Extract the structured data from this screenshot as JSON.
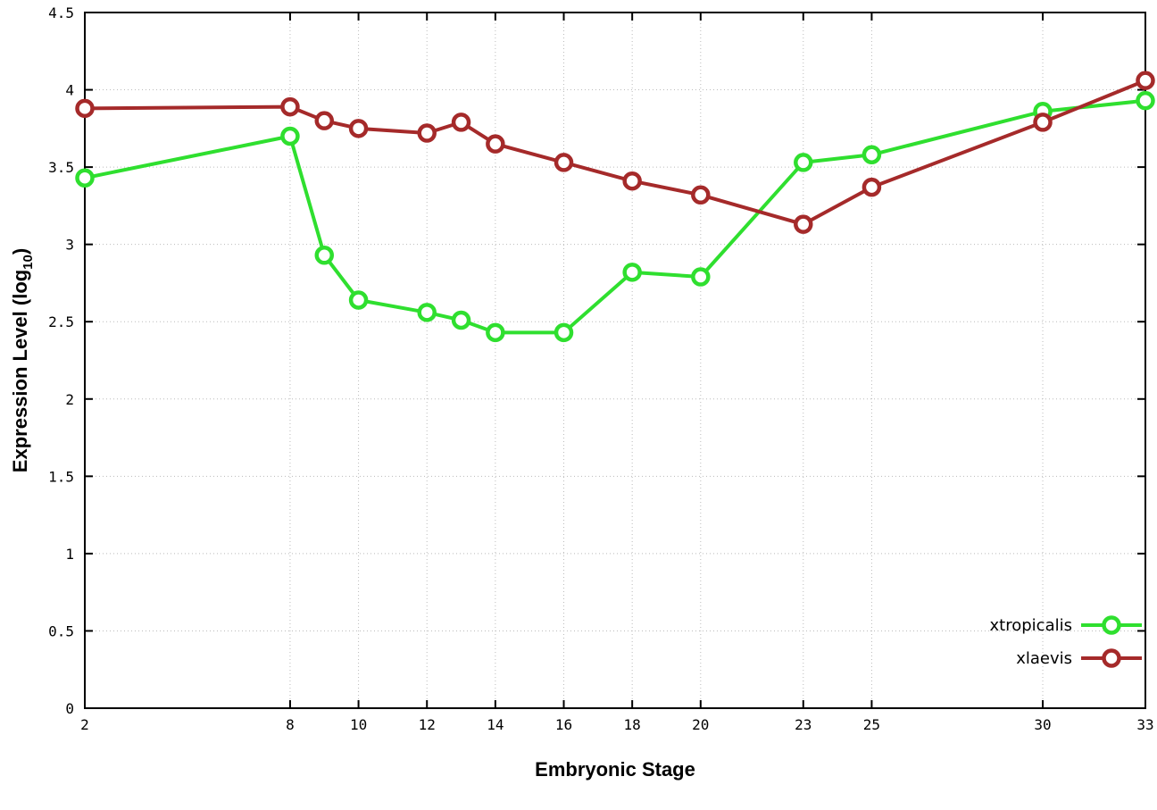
{
  "chart_data": {
    "type": "line",
    "x": [
      2,
      8,
      9,
      10,
      12,
      13,
      14,
      16,
      18,
      20,
      23,
      25,
      30,
      33
    ],
    "series": [
      {
        "name": "xtropicalis",
        "color": "#2fdf2f",
        "values": [
          3.43,
          3.7,
          2.93,
          2.64,
          2.56,
          2.51,
          2.43,
          2.43,
          2.82,
          2.79,
          3.53,
          3.58,
          3.86,
          3.93
        ]
      },
      {
        "name": "xlaevis",
        "color": "#a52a2a",
        "values": [
          3.88,
          3.89,
          3.8,
          3.75,
          3.72,
          3.79,
          3.65,
          3.53,
          3.41,
          3.32,
          3.13,
          3.37,
          3.79,
          4.06
        ]
      }
    ],
    "xlabel": "Embryonic Stage",
    "ylabel": {
      "pre": "Expression Level (log",
      "sub": "10",
      "post": ")"
    },
    "x_tick_values": [
      2,
      8,
      10,
      12,
      14,
      16,
      18,
      20,
      23,
      25,
      30,
      33
    ],
    "x_tick_labels": [
      "2",
      "8",
      "10",
      "12",
      "14",
      "16",
      "18",
      "20",
      "23",
      "25",
      "30",
      "33"
    ],
    "y_tick_values": [
      0,
      0.5,
      1,
      1.5,
      2,
      2.5,
      3,
      3.5,
      4,
      4.5
    ],
    "y_tick_labels": [
      "0",
      "0.5",
      "1",
      "1.5",
      "2",
      "2.5",
      "3",
      "3.5",
      "4",
      "4.5"
    ],
    "xlim": [
      2,
      33
    ],
    "ylim": [
      0,
      4.5
    ],
    "grid": true,
    "legend_position": "bottom-right",
    "legend": [
      {
        "label": "xtropicalis"
      },
      {
        "label": "xlaevis"
      }
    ]
  },
  "colors": {
    "background": "#ffffff",
    "axis": "#000000",
    "grid": "#bbbbbb",
    "tick_text": "#000000"
  }
}
